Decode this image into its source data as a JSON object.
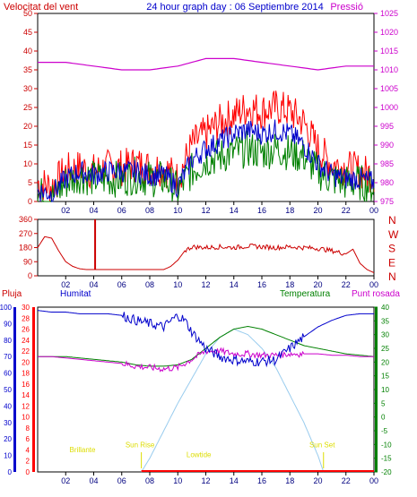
{
  "header": {
    "left_title": "Velocitat del vent",
    "center_title": "24 hour graph day : 06 Septiembre 2014",
    "right_title": "Pressió"
  },
  "colors": {
    "wind_gust": "#ff0000",
    "wind_speed": "#0000cc",
    "wind_avg": "#008000",
    "pressure": "#cc00cc",
    "direction": "#cc0000",
    "humidity": "#0000cc",
    "temperature": "#008000",
    "dewpoint": "#cc00cc",
    "solar": "#99ccee",
    "rain": "#ff0000",
    "sun_labels": "#dddd00",
    "left_axis": "#cc0000",
    "humidity_axis": "#0000cc",
    "temp_axis": "#008000",
    "pressure_axis": "#cc00cc"
  },
  "chart_data": [
    {
      "type": "line",
      "name": "wind-pressure",
      "x_ticks": [
        "02",
        "04",
        "06",
        "08",
        "10",
        "12",
        "14",
        "16",
        "18",
        "20",
        "22",
        "00"
      ],
      "left_axis": {
        "label": "Velocitat del vent",
        "ticks": [
          "0",
          "5",
          "10",
          "15",
          "20",
          "25",
          "30",
          "35",
          "40",
          "45",
          "50"
        ],
        "ylim": [
          0,
          50
        ]
      },
      "right_axis": {
        "label": "Pressió",
        "ticks": [
          "975",
          "980",
          "985",
          "990",
          "995",
          "1000",
          "1005",
          "1010",
          "1015",
          "1020",
          "1025"
        ],
        "ylim": [
          975,
          1025
        ]
      },
      "series": [
        {
          "key": "gust",
          "x": [
            0,
            1,
            2,
            3,
            4,
            5,
            6,
            7,
            8,
            9,
            10,
            11,
            12,
            13,
            14,
            15,
            16,
            17,
            18,
            19,
            20,
            21,
            22,
            23,
            24
          ],
          "values": [
            5,
            4,
            8,
            9,
            8,
            9,
            9,
            10,
            9,
            9,
            6,
            15,
            18,
            21,
            23,
            25,
            24,
            25,
            24,
            21,
            14,
            10,
            9,
            8,
            7
          ]
        },
        {
          "key": "speed",
          "x": [
            0,
            1,
            2,
            3,
            4,
            5,
            6,
            7,
            8,
            9,
            10,
            11,
            12,
            13,
            14,
            15,
            16,
            17,
            18,
            19,
            20,
            21,
            22,
            23,
            24
          ],
          "values": [
            3,
            2,
            6,
            8,
            7,
            8,
            8,
            8,
            7,
            7,
            4,
            11,
            14,
            16,
            18,
            19,
            18,
            19,
            18,
            15,
            10,
            7,
            6,
            6,
            5
          ]
        },
        {
          "key": "average",
          "x": [
            0,
            1,
            2,
            3,
            4,
            5,
            6,
            7,
            8,
            9,
            10,
            11,
            12,
            13,
            14,
            15,
            16,
            17,
            18,
            19,
            20,
            21,
            22,
            23,
            24
          ],
          "values": [
            2,
            1,
            5,
            7,
            6,
            6,
            6,
            7,
            6,
            6,
            3,
            8,
            11,
            12,
            13,
            14,
            13,
            14,
            13,
            12,
            8,
            6,
            5,
            5,
            4
          ]
        },
        {
          "key": "pressure",
          "x": [
            0,
            2,
            4,
            6,
            8,
            10,
            12,
            14,
            16,
            18,
            20,
            22,
            24
          ],
          "values": [
            1012,
            1012,
            1011,
            1010,
            1010,
            1011,
            1013,
            1013,
            1012,
            1011,
            1010,
            1011,
            1011
          ]
        }
      ]
    },
    {
      "type": "line",
      "name": "wind-direction",
      "x_ticks": [
        "02",
        "04",
        "06",
        "08",
        "10",
        "12",
        "14",
        "16",
        "18",
        "20",
        "22",
        "00"
      ],
      "left_ticks": [
        "0",
        "90",
        "180",
        "270",
        "360"
      ],
      "ylim": [
        0,
        360
      ],
      "compass_labels": [
        "N",
        "W",
        "S",
        "E",
        "N"
      ],
      "series": [
        {
          "key": "direction",
          "x": [
            0,
            0.5,
            1,
            1.5,
            2,
            2.5,
            3,
            3.5,
            4,
            4.5,
            5,
            6,
            7,
            8,
            9,
            9.5,
            10,
            10.5,
            11,
            12,
            13,
            14,
            15,
            16,
            17,
            18,
            19,
            20,
            21,
            22,
            22.5,
            23,
            23.5,
            24
          ],
          "values": [
            180,
            250,
            240,
            160,
            90,
            60,
            45,
            40,
            40,
            40,
            40,
            40,
            40,
            40,
            40,
            60,
            100,
            160,
            185,
            180,
            185,
            180,
            190,
            185,
            180,
            185,
            180,
            175,
            160,
            140,
            170,
            80,
            40,
            20
          ]
        }
      ],
      "spike_x": 4.1
    },
    {
      "type": "line",
      "name": "humidity-temperature",
      "x_ticks": [
        "02",
        "04",
        "06",
        "08",
        "10",
        "12",
        "14",
        "16",
        "18",
        "20",
        "22",
        "00"
      ],
      "labels": {
        "rain": "Pluja",
        "humidity": "Humitat",
        "temperature": "Temperatura",
        "dewpoint": "Punt rosada"
      },
      "rain_ticks": [
        "0",
        "2",
        "4",
        "6",
        "8",
        "10",
        "12",
        "14",
        "16",
        "18",
        "20",
        "22",
        "24",
        "26",
        "28",
        "30"
      ],
      "humidity_ticks": [
        "0",
        "10",
        "20",
        "30",
        "40",
        "50",
        "60",
        "70",
        "80",
        "90",
        "100"
      ],
      "temp_ticks": [
        "-20",
        "-15",
        "-10",
        "-5",
        "0",
        "5",
        "10",
        "15",
        "20",
        "25",
        "30",
        "35",
        "40"
      ],
      "annotations": [
        {
          "text": "Brillante",
          "x": 3.2,
          "y_frac": 0.88
        },
        {
          "text": "Sun Rise",
          "x": 7.3,
          "y_frac": 0.85
        },
        {
          "text": "Lowtide",
          "x": 11.5,
          "y_frac": 0.91
        },
        {
          "text": "Sun Set",
          "x": 20.3,
          "y_frac": 0.85
        }
      ],
      "series": [
        {
          "key": "humidity",
          "x": [
            0,
            1,
            2,
            3,
            4,
            5,
            6,
            7,
            8,
            9,
            10,
            10.5,
            11,
            12,
            13,
            14,
            15,
            16,
            17,
            18,
            19,
            20,
            21,
            22,
            23,
            24
          ],
          "values": [
            98,
            97,
            97,
            96,
            96,
            96,
            95,
            92,
            90,
            88,
            95,
            92,
            85,
            75,
            70,
            68,
            67,
            67,
            68,
            75,
            82,
            88,
            92,
            95,
            96,
            96
          ]
        },
        {
          "key": "temperature",
          "x": [
            0,
            1,
            2,
            3,
            4,
            5,
            6,
            7,
            8,
            9,
            10,
            11,
            12,
            13,
            14,
            15,
            16,
            17,
            18,
            19,
            20,
            21,
            22,
            23,
            24
          ],
          "values": [
            22,
            22,
            22,
            21.5,
            21,
            20.5,
            20,
            19,
            18.5,
            18.5,
            19,
            21,
            25,
            29,
            32,
            33,
            32,
            30,
            28,
            26,
            25,
            24,
            23,
            22.5,
            22
          ]
        },
        {
          "key": "dewpoint",
          "x": [
            0,
            1,
            2,
            3,
            4,
            5,
            6,
            7,
            8,
            9,
            10,
            11,
            12,
            13,
            14,
            15,
            16,
            17,
            18,
            19,
            20,
            21,
            22,
            23,
            24
          ],
          "values": [
            22,
            22,
            21.5,
            21,
            20.5,
            20,
            19.5,
            18.5,
            18,
            17.5,
            18,
            21,
            24,
            24,
            23,
            23,
            22.5,
            22.5,
            23,
            23,
            23,
            22.5,
            22.5,
            22,
            22
          ]
        },
        {
          "key": "solar",
          "x": [
            7.4,
            8,
            9,
            10,
            11,
            12,
            13,
            14,
            15,
            16,
            17,
            18,
            19,
            20,
            20.4
          ],
          "values": [
            -20,
            -15,
            -5,
            5,
            14,
            23,
            29,
            32,
            30,
            25,
            18,
            8,
            -2,
            -14,
            -20
          ]
        },
        {
          "key": "rain",
          "x": [
            7.4,
            24
          ],
          "values": [
            0,
            0
          ]
        }
      ]
    }
  ]
}
